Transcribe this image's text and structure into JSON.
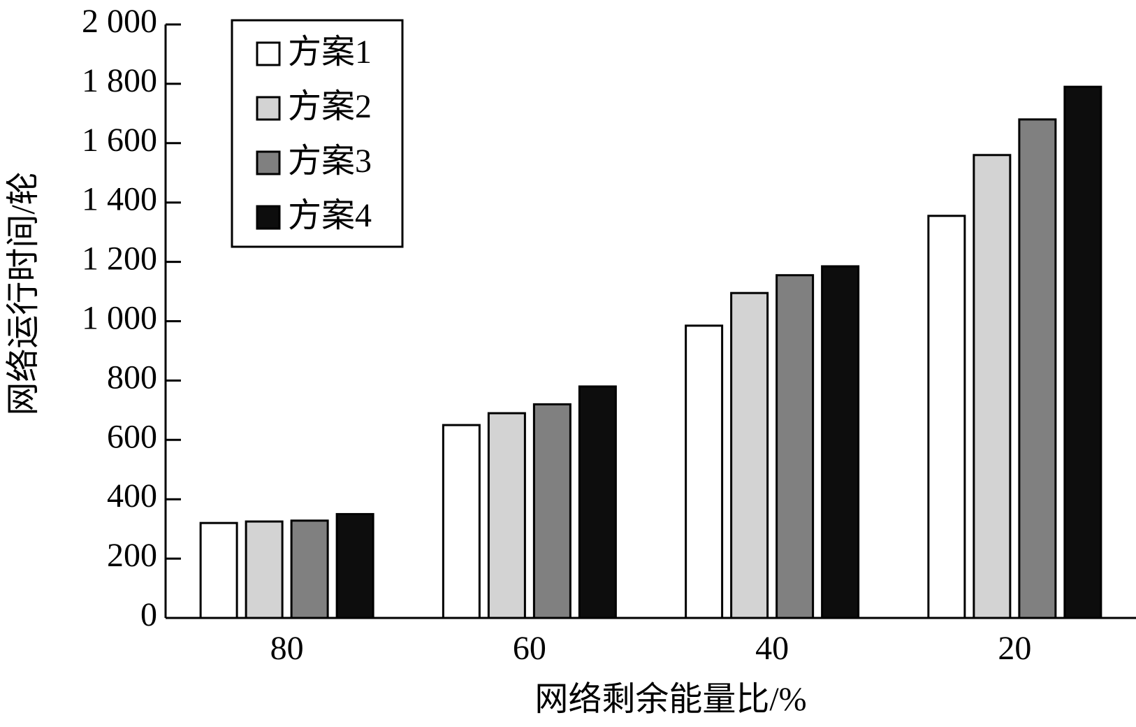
{
  "chart_data": {
    "type": "bar",
    "x_label": "网络剩余能量比/%",
    "y_label": "网络运行时间/轮",
    "categories": [
      "80",
      "60",
      "40",
      "20"
    ],
    "series": [
      {
        "name": "方案1",
        "color": "#ffffff",
        "values": [
          320,
          650,
          985,
          1355
        ]
      },
      {
        "name": "方案2",
        "color": "#d3d3d3",
        "values": [
          325,
          690,
          1095,
          1560
        ]
      },
      {
        "name": "方案3",
        "color": "#808080",
        "values": [
          328,
          720,
          1155,
          1680
        ]
      },
      {
        "name": "方案4",
        "color": "#0d0d0d",
        "values": [
          350,
          780,
          1185,
          1790
        ]
      }
    ],
    "ylim": [
      0,
      2000
    ],
    "yticks": [
      0,
      200,
      400,
      600,
      800,
      {
        "value": 1000,
        "label": "1 000"
      },
      {
        "value": 1200,
        "label": "1 200"
      },
      {
        "value": 1400,
        "label": "1 400"
      },
      {
        "value": 1600,
        "label": "1 600"
      },
      {
        "value": 1800,
        "label": "1 800"
      },
      {
        "value": 2000,
        "label": "2 000"
      }
    ],
    "legend": "upper left"
  }
}
